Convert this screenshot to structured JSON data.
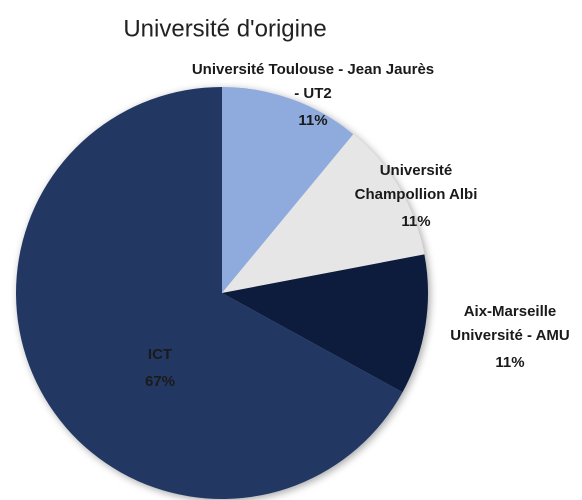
{
  "chart_data": {
    "type": "pie",
    "title": "Université d'origine",
    "categories": [
      "Université Toulouse - Jean Jaurès - UT2",
      "Université Champollion Albi",
      "Aix-Marseille Université - AMU",
      "ICT"
    ],
    "values": [
      11,
      11,
      11,
      67
    ],
    "value_labels": [
      "11%",
      "11%",
      "11%",
      "67%"
    ],
    "colors": [
      "#8faadc",
      "#e7e6e6",
      "#0f1f3d",
      "#203864"
    ]
  }
}
